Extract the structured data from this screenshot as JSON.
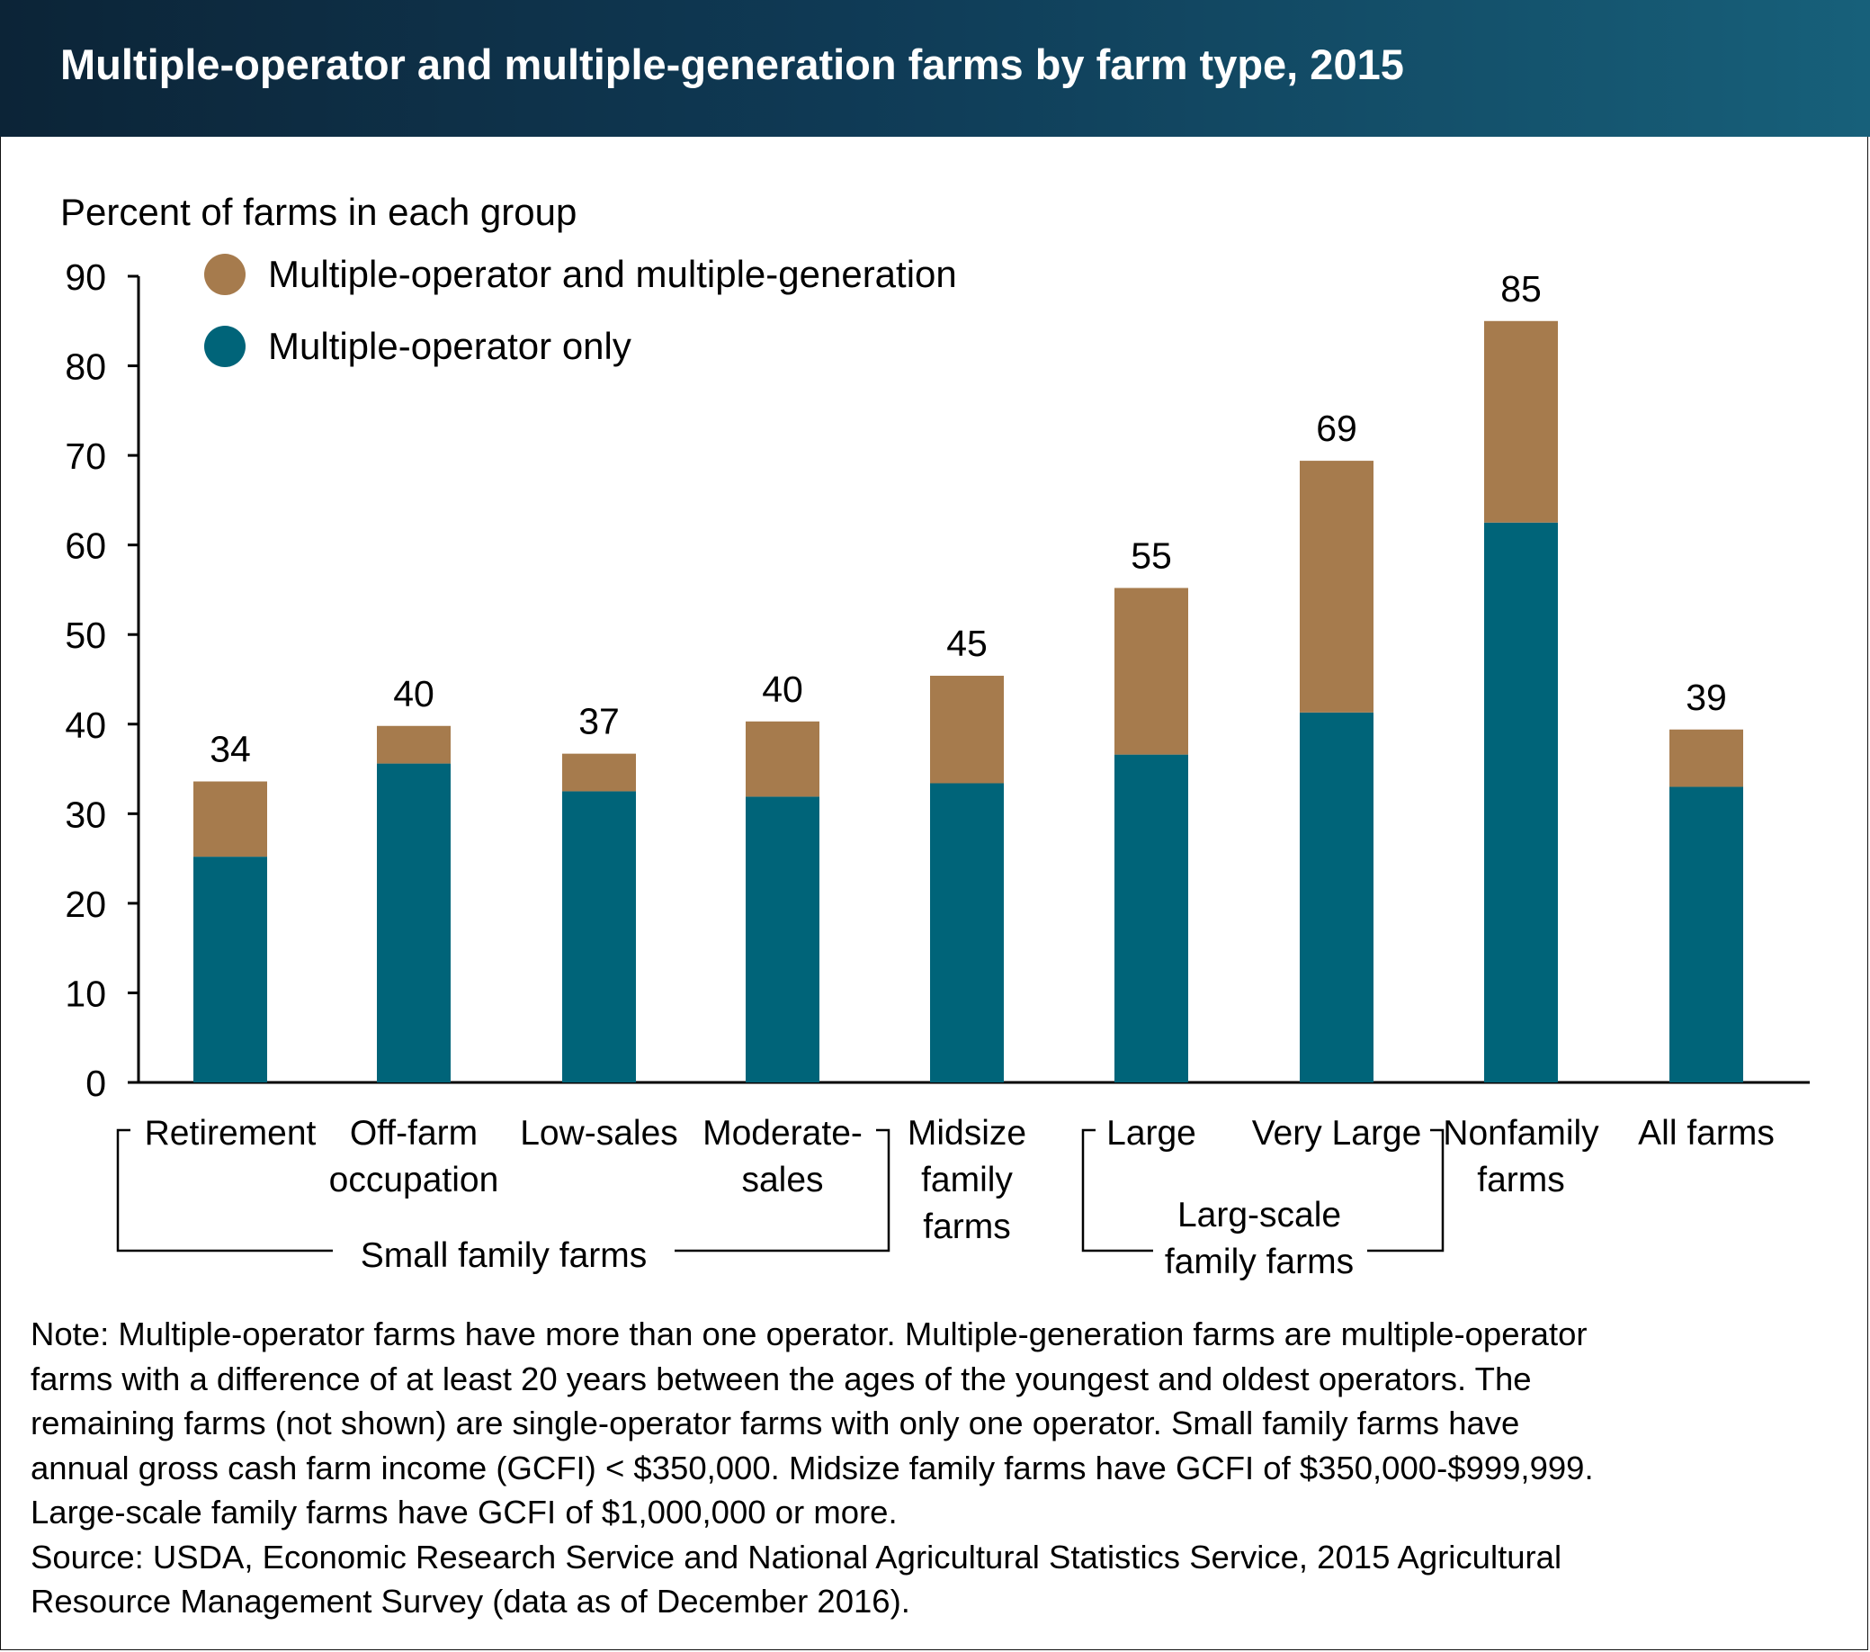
{
  "title": "Multiple-operator and multiple-generation farms by farm type, 2015",
  "colors": {
    "multi_gen": "#a67b4d",
    "multi_op": "#006479",
    "title_bar_dark": "#0c2437",
    "title_bar_light": "#17607a"
  },
  "chart_data": {
    "type": "bar",
    "stacked": true,
    "ylabel": "Percent of farms in each group",
    "ylim": [
      0,
      90
    ],
    "yticks": [
      0,
      10,
      20,
      30,
      40,
      50,
      60,
      70,
      80,
      90
    ],
    "legend_placement": "top-left",
    "grid": false,
    "categories": [
      [
        "Retirement"
      ],
      [
        "Off-farm",
        "occupation"
      ],
      [
        "Low-sales"
      ],
      [
        "Moderate-",
        "sales"
      ],
      [
        "Midsize",
        "family",
        "farms"
      ],
      [
        "Large"
      ],
      [
        "Very Large"
      ],
      [
        "Nonfamily",
        "farms"
      ],
      [
        "All farms"
      ]
    ],
    "series": [
      {
        "name": "Multiple-operator only",
        "color": "#006479",
        "values": [
          25.2,
          35.6,
          32.5,
          31.9,
          33.4,
          36.6,
          41.3,
          62.5,
          33.0
        ]
      },
      {
        "name": "Multiple-operator and multiple-generation",
        "color": "#a67b4d",
        "values": [
          8.4,
          4.2,
          4.2,
          8.4,
          12.0,
          18.6,
          28.1,
          22.5,
          6.4
        ]
      }
    ],
    "totals": [
      "34",
      "40",
      "37",
      "40",
      "45",
      "55",
      "69",
      "85",
      "39"
    ],
    "groups": [
      {
        "label": [
          "Small family farms"
        ],
        "from": 0,
        "to": 3
      },
      {
        "label": [
          "Larg-scale",
          "family farms"
        ],
        "from": 5,
        "to": 6
      }
    ]
  },
  "notes": [
    "Note: Multiple-operator farms have more than one operator. Multiple-generation farms are multiple-operator",
    "farms with a difference of at least 20 years between the ages of the youngest and oldest operators. The",
    "remaining farms (not shown) are single-operator farms with only one operator. Small family farms have",
    "annual gross cash farm income (GCFI) < $350,000. Midsize family farms have GCFI of $350,000-$999,999.",
    "Large-scale family farms have GCFI of $1,000,000 or more.",
    "Source: USDA, Economic Research Service and National Agricultural Statistics Service, 2015 Agricultural",
    "Resource Management Survey (data as of December 2016)."
  ]
}
